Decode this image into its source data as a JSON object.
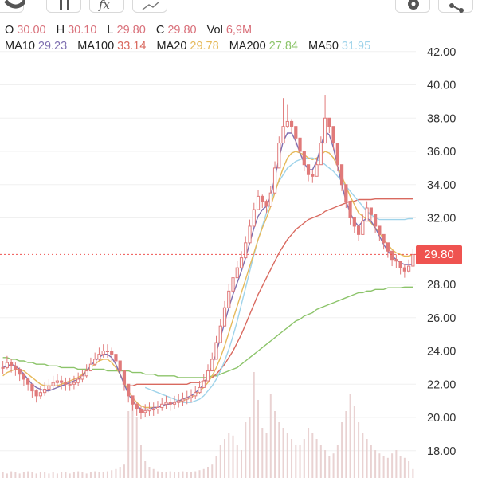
{
  "ohlc": {
    "o_label": "O",
    "o_value": "30.00",
    "h_label": "H",
    "h_value": "30.10",
    "l_label": "L",
    "l_value": "29.80",
    "c_label": "C",
    "c_value": "29.80",
    "vol_label": "Vol",
    "vol_value": "6,9M"
  },
  "moving_averages": [
    {
      "label": "MA10",
      "value": "29.23",
      "color": "#7e6fb0"
    },
    {
      "label": "MA100",
      "value": "33.14",
      "color": "#d9695f"
    },
    {
      "label": "MA20",
      "value": "29.78",
      "color": "#e6b95a"
    },
    {
      "label": "MA200",
      "value": "27.84",
      "color": "#8cc46a"
    },
    {
      "label": "MA50",
      "value": "31.95",
      "color": "#9fd3ea"
    }
  ],
  "colors": {
    "up": "#e07a7a",
    "down": "#e07a7a",
    "ohlc_value": "#d9707a",
    "last_price": "#ef5350",
    "volume": "#e9d2d2",
    "grid": "#f0f0f0"
  },
  "last_price": "29.80",
  "toolbar_icons": [
    "candles-icon",
    "indicators-icon",
    "fx-icon",
    "drawing-icon",
    "settings-icon",
    "share-icon"
  ],
  "chart_data": {
    "type": "candlestick",
    "y_ticks": [
      "42.00",
      "40.00",
      "38.00",
      "36.00",
      "34.00",
      "32.00",
      "28.00",
      "26.00",
      "24.00",
      "22.00",
      "20.00",
      "18.00"
    ],
    "ylim": [
      17.5,
      42.5
    ],
    "close": [
      23.0,
      23.3,
      23.1,
      22.9,
      22.6,
      22.3,
      22.0,
      21.6,
      21.3,
      21.5,
      21.7,
      21.9,
      22.1,
      22.2,
      22.1,
      22.0,
      22.0,
      22.1,
      22.3,
      22.5,
      22.8,
      23.2,
      23.5,
      23.8,
      24.0,
      24.0,
      23.8,
      23.4,
      22.8,
      22.0,
      21.3,
      20.8,
      20.5,
      20.3,
      20.4,
      20.5,
      20.5,
      20.6,
      20.8,
      20.9,
      20.8,
      20.9,
      21.0,
      21.1,
      21.2,
      21.3,
      21.5,
      21.8,
      22.2,
      22.8,
      23.5,
      24.5,
      25.5,
      26.6,
      27.6,
      28.4,
      29.0,
      29.6,
      30.5,
      31.5,
      32.5,
      33.3,
      33.0,
      32.7,
      33.5,
      35.0,
      36.5,
      37.5,
      37.8,
      37.5,
      36.8,
      36.0,
      35.2,
      34.6,
      34.5,
      35.2,
      36.5,
      38.0,
      37.5,
      36.5,
      35.2,
      34.0,
      33.0,
      32.0,
      31.5,
      31.0,
      31.8,
      32.6,
      32.2,
      31.5,
      31.0,
      30.5,
      30.0,
      29.5,
      29.4,
      29.0,
      28.8,
      29.1,
      29.8
    ],
    "high": [
      23.4,
      23.7,
      23.5,
      23.3,
      23.0,
      22.7,
      22.4,
      22.0,
      21.7,
      21.9,
      22.1,
      22.3,
      22.5,
      22.6,
      22.5,
      22.4,
      22.4,
      22.5,
      22.7,
      22.9,
      23.2,
      23.6,
      23.9,
      24.2,
      24.4,
      24.4,
      24.2,
      23.8,
      23.2,
      22.4,
      21.7,
      21.2,
      20.9,
      20.7,
      20.8,
      20.9,
      20.9,
      21.0,
      21.2,
      21.3,
      21.2,
      21.3,
      21.4,
      21.5,
      21.6,
      21.7,
      21.9,
      22.2,
      22.6,
      23.2,
      23.9,
      24.9,
      25.9,
      27.0,
      28.0,
      28.8,
      29.4,
      30.0,
      30.9,
      31.9,
      32.9,
      33.7,
      33.4,
      33.1,
      33.9,
      35.4,
      36.9,
      39.2,
      38.8,
      37.9,
      37.2,
      36.4,
      35.6,
      35.0,
      34.9,
      35.6,
      36.9,
      39.4,
      37.9,
      36.9,
      35.6,
      34.4,
      33.4,
      32.4,
      31.9,
      31.4,
      32.2,
      33.0,
      32.6,
      31.9,
      31.4,
      30.9,
      30.4,
      29.9,
      29.8,
      29.4,
      29.2,
      29.5,
      30.1
    ],
    "low": [
      22.6,
      22.9,
      22.7,
      22.5,
      22.2,
      21.9,
      21.6,
      21.2,
      20.9,
      21.1,
      21.3,
      21.5,
      21.7,
      21.8,
      21.7,
      21.6,
      21.6,
      21.7,
      21.9,
      22.1,
      22.4,
      22.8,
      23.1,
      23.4,
      23.6,
      23.6,
      23.4,
      23.0,
      22.4,
      21.6,
      20.9,
      20.4,
      20.1,
      19.9,
      20.0,
      20.1,
      20.1,
      20.2,
      20.4,
      20.5,
      20.4,
      20.5,
      20.6,
      20.7,
      20.8,
      20.9,
      21.1,
      21.4,
      21.8,
      22.4,
      23.1,
      24.1,
      25.1,
      26.2,
      27.2,
      28.0,
      28.6,
      29.2,
      30.1,
      31.1,
      32.1,
      32.9,
      32.6,
      32.3,
      33.1,
      34.6,
      36.1,
      37.1,
      37.4,
      37.1,
      36.4,
      35.6,
      34.8,
      34.2,
      34.1,
      34.8,
      36.1,
      37.6,
      37.1,
      36.1,
      34.8,
      33.6,
      32.6,
      31.6,
      31.1,
      30.6,
      31.4,
      32.2,
      31.8,
      31.1,
      30.6,
      30.1,
      29.6,
      29.1,
      29.0,
      28.6,
      28.4,
      28.7,
      29.8
    ],
    "ma10": [
      23.0,
      23.1,
      23.2,
      23.1,
      22.9,
      22.6,
      22.3,
      22.0,
      21.8,
      21.7,
      21.6,
      21.6,
      21.7,
      21.8,
      21.9,
      22.0,
      22.1,
      22.2,
      22.3,
      22.5,
      22.8,
      23.1,
      23.4,
      23.6,
      23.8,
      23.8,
      23.6,
      23.2,
      22.6,
      22.0,
      21.4,
      21.0,
      20.7,
      20.5,
      20.5,
      20.5,
      20.6,
      20.6,
      20.7,
      20.8,
      20.8,
      20.9,
      21.0,
      21.1,
      21.2,
      21.3,
      21.5,
      21.7,
      22.0,
      22.5,
      23.1,
      23.9,
      24.8,
      25.7,
      26.6,
      27.4,
      28.1,
      28.8,
      29.6,
      30.5,
      31.4,
      32.1,
      32.5,
      32.7,
      33.3,
      34.4,
      35.6,
      36.6,
      37.1,
      37.1,
      36.6,
      35.9,
      35.3,
      34.9,
      34.9,
      35.4,
      36.3,
      37.2,
      37.0,
      36.2,
      35.1,
      34.0,
      33.0,
      32.3,
      31.8,
      31.5,
      31.8,
      32.0,
      31.8,
      31.4,
      30.9,
      30.4,
      30.0,
      29.7,
      29.5,
      29.3,
      29.2,
      29.2,
      29.2
    ],
    "ma20": [
      22.5,
      22.7,
      22.8,
      22.9,
      22.9,
      22.8,
      22.6,
      22.4,
      22.2,
      22.0,
      21.9,
      21.9,
      21.9,
      21.9,
      22.0,
      22.1,
      22.2,
      22.3,
      22.4,
      22.6,
      22.8,
      23.0,
      23.2,
      23.4,
      23.5,
      23.5,
      23.3,
      23.0,
      22.6,
      22.1,
      21.6,
      21.2,
      20.9,
      20.7,
      20.6,
      20.6,
      20.6,
      20.6,
      20.7,
      20.8,
      20.8,
      20.9,
      21.0,
      21.0,
      21.1,
      21.2,
      21.4,
      21.6,
      21.8,
      22.1,
      22.5,
      23.0,
      23.6,
      24.3,
      25.1,
      25.9,
      26.7,
      27.5,
      28.3,
      29.1,
      29.9,
      30.7,
      31.4,
      32.0,
      32.7,
      33.5,
      34.3,
      35.0,
      35.6,
      35.9,
      36.0,
      35.9,
      35.8,
      35.6,
      35.5,
      35.6,
      35.8,
      36.0,
      35.9,
      35.6,
      35.1,
      34.5,
      33.9,
      33.3,
      32.8,
      32.3,
      32.1,
      31.9,
      31.7,
      31.4,
      31.1,
      30.7,
      30.4,
      30.1,
      29.9,
      29.8,
      29.7,
      29.7,
      29.8
    ],
    "ma50": [
      null,
      null,
      null,
      null,
      null,
      null,
      null,
      null,
      null,
      null,
      null,
      null,
      null,
      null,
      null,
      null,
      null,
      null,
      null,
      null,
      null,
      null,
      null,
      null,
      null,
      null,
      null,
      null,
      null,
      null,
      null,
      null,
      null,
      null,
      21.8,
      21.7,
      21.6,
      21.5,
      21.4,
      21.3,
      21.2,
      21.1,
      21.0,
      20.9,
      20.9,
      20.9,
      21.0,
      21.1,
      21.3,
      21.6,
      21.9,
      22.3,
      22.8,
      23.4,
      24.1,
      24.9,
      25.8,
      26.8,
      27.8,
      28.8,
      29.8,
      30.7,
      31.5,
      32.3,
      33.0,
      33.7,
      34.2,
      34.6,
      35.0,
      35.2,
      35.4,
      35.5,
      35.6,
      35.6,
      35.6,
      35.5,
      35.4,
      35.2,
      35.0,
      34.8,
      34.5,
      34.2,
      33.9,
      33.6,
      33.3,
      33.0,
      32.7,
      32.4,
      32.2,
      32.0,
      31.9,
      31.9,
      31.9,
      31.9,
      31.9,
      31.9,
      31.9,
      31.95,
      31.95
    ],
    "ma100": [
      null,
      null,
      null,
      null,
      null,
      null,
      null,
      null,
      null,
      null,
      null,
      null,
      null,
      null,
      null,
      null,
      null,
      null,
      null,
      null,
      null,
      null,
      null,
      null,
      null,
      null,
      null,
      null,
      null,
      null,
      21.9,
      21.9,
      22.0,
      22.0,
      22.0,
      22.0,
      22.0,
      22.0,
      22.0,
      22.0,
      22.0,
      22.0,
      22.0,
      22.0,
      22.0,
      22.1,
      22.1,
      22.1,
      22.2,
      22.3,
      22.4,
      22.6,
      22.9,
      23.2,
      23.6,
      24.0,
      24.5,
      25.0,
      25.6,
      26.2,
      26.8,
      27.4,
      27.9,
      28.4,
      28.9,
      29.4,
      29.9,
      30.3,
      30.7,
      31.0,
      31.3,
      31.5,
      31.7,
      31.9,
      32.0,
      32.1,
      32.2,
      32.4,
      32.5,
      32.6,
      32.7,
      32.8,
      32.9,
      33.0,
      33.0,
      33.1,
      33.1,
      33.1,
      33.1,
      33.14,
      33.14,
      33.14,
      33.14,
      33.14,
      33.14,
      33.14,
      33.14,
      33.14,
      33.14
    ],
    "ma200": [
      23.6,
      23.6,
      23.5,
      23.5,
      23.4,
      23.4,
      23.3,
      23.3,
      23.2,
      23.2,
      23.2,
      23.1,
      23.1,
      23.1,
      23.0,
      23.0,
      23.0,
      23.0,
      22.9,
      22.9,
      22.9,
      22.9,
      22.9,
      22.9,
      22.9,
      22.8,
      22.8,
      22.8,
      22.8,
      22.8,
      22.8,
      22.7,
      22.7,
      22.7,
      22.6,
      22.6,
      22.6,
      22.5,
      22.5,
      22.5,
      22.5,
      22.5,
      22.4,
      22.4,
      22.4,
      22.4,
      22.4,
      22.4,
      22.4,
      22.4,
      22.5,
      22.5,
      22.6,
      22.7,
      22.8,
      22.9,
      23.0,
      23.2,
      23.4,
      23.6,
      23.8,
      24.0,
      24.2,
      24.4,
      24.6,
      24.8,
      25.0,
      25.2,
      25.4,
      25.6,
      25.8,
      25.9,
      26.1,
      26.2,
      26.3,
      26.5,
      26.6,
      26.7,
      26.8,
      26.9,
      27.0,
      27.1,
      27.2,
      27.3,
      27.4,
      27.5,
      27.5,
      27.6,
      27.6,
      27.7,
      27.7,
      27.7,
      27.8,
      27.8,
      27.8,
      27.8,
      27.84,
      27.84,
      27.84
    ],
    "volume_rel": [
      0.05,
      0.04,
      0.06,
      0.05,
      0.04,
      0.05,
      0.06,
      0.05,
      0.04,
      0.05,
      0.05,
      0.04,
      0.05,
      0.04,
      0.05,
      0.05,
      0.04,
      0.05,
      0.06,
      0.05,
      0.04,
      0.05,
      0.06,
      0.05,
      0.05,
      0.06,
      0.07,
      0.08,
      0.1,
      0.12,
      0.6,
      0.7,
      0.55,
      0.3,
      0.15,
      0.1,
      0.08,
      0.06,
      0.05,
      0.05,
      0.06,
      0.05,
      0.05,
      0.06,
      0.05,
      0.05,
      0.06,
      0.07,
      0.08,
      0.1,
      0.12,
      0.2,
      0.3,
      0.35,
      0.4,
      0.38,
      0.3,
      0.25,
      0.5,
      0.55,
      0.95,
      0.7,
      0.45,
      0.4,
      0.75,
      0.6,
      0.5,
      0.45,
      0.4,
      0.35,
      0.3,
      0.3,
      0.35,
      0.45,
      0.4,
      0.35,
      0.3,
      0.25,
      0.2,
      0.22,
      0.3,
      0.5,
      0.6,
      0.75,
      0.65,
      0.5,
      0.4,
      0.35,
      0.3,
      0.25,
      0.22,
      0.2,
      0.18,
      0.22,
      0.25,
      0.2,
      0.18,
      0.15,
      0.08
    ]
  }
}
